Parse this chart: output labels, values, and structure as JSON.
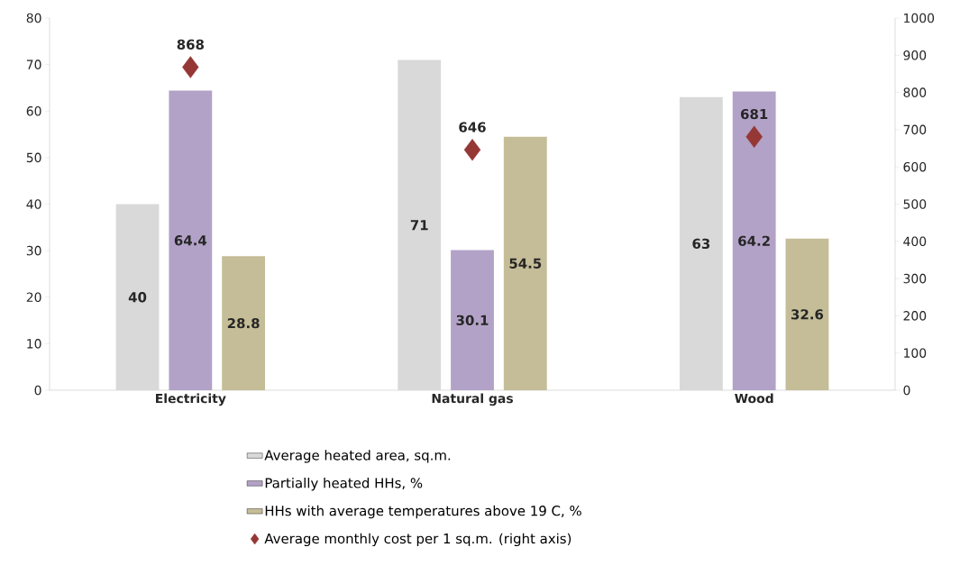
{
  "chart_data": {
    "type": "bar",
    "categories": [
      "Electricity",
      "Natural gas",
      "Wood"
    ],
    "series": [
      {
        "name": "Average heated area, sq.m.",
        "color": "#d9d9d9",
        "values": [
          40,
          71,
          63
        ]
      },
      {
        "name": "Partially heated HHs, %",
        "color": "#b3a2c7",
        "values": [
          64.4,
          30.1,
          64.2
        ]
      },
      {
        "name": "HHs with average temperatures above 19 C, %",
        "color": "#c4bd97",
        "values": [
          28.8,
          54.5,
          32.6
        ]
      },
      {
        "name": "Average monthly cost per 1 sq.m. (right axis)",
        "type": "scatter",
        "axis": "y2",
        "marker": "diamond",
        "color": "#953735",
        "values": [
          868,
          646,
          681
        ]
      }
    ],
    "ylim": [
      0,
      80
    ],
    "yticks": [
      0,
      10,
      20,
      30,
      40,
      50,
      60,
      70,
      80
    ],
    "y2lim": [
      0,
      1000
    ],
    "y2ticks": [
      0,
      100,
      200,
      300,
      400,
      500,
      600,
      700,
      800,
      900,
      1000
    ],
    "data_labels": true,
    "grid": false,
    "legend": "bottom"
  }
}
